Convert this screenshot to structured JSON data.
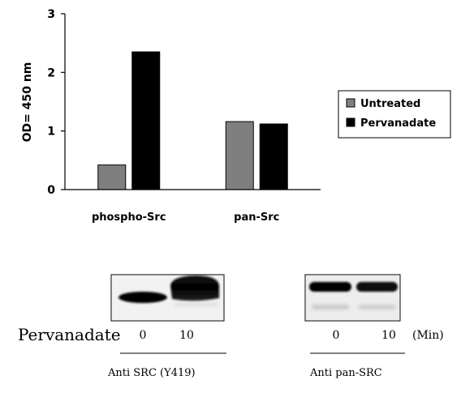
{
  "chart_data": {
    "type": "bar",
    "categories": [
      "phospho-Src",
      "pan-Src"
    ],
    "series": [
      {
        "name": "Untreated",
        "values": [
          0.42,
          1.16
        ],
        "color": "#7f7f7f"
      },
      {
        "name": "Pervanadate",
        "values": [
          2.35,
          1.12
        ],
        "color": "#000000"
      }
    ],
    "ylabel": "OD= 450 nm",
    "ylim": [
      0,
      3
    ],
    "yticks": [
      0,
      1,
      2,
      3
    ],
    "legend_position": "right",
    "grid": false
  },
  "blots": {
    "treatment_label": "Pervanadate",
    "left": {
      "lane_labels": [
        "0",
        "10"
      ],
      "antibody": "Anti SRC (Y419)"
    },
    "right": {
      "lane_labels": [
        "0",
        "10"
      ],
      "unit": "(Min)",
      "antibody": "Anti pan-SRC"
    }
  }
}
